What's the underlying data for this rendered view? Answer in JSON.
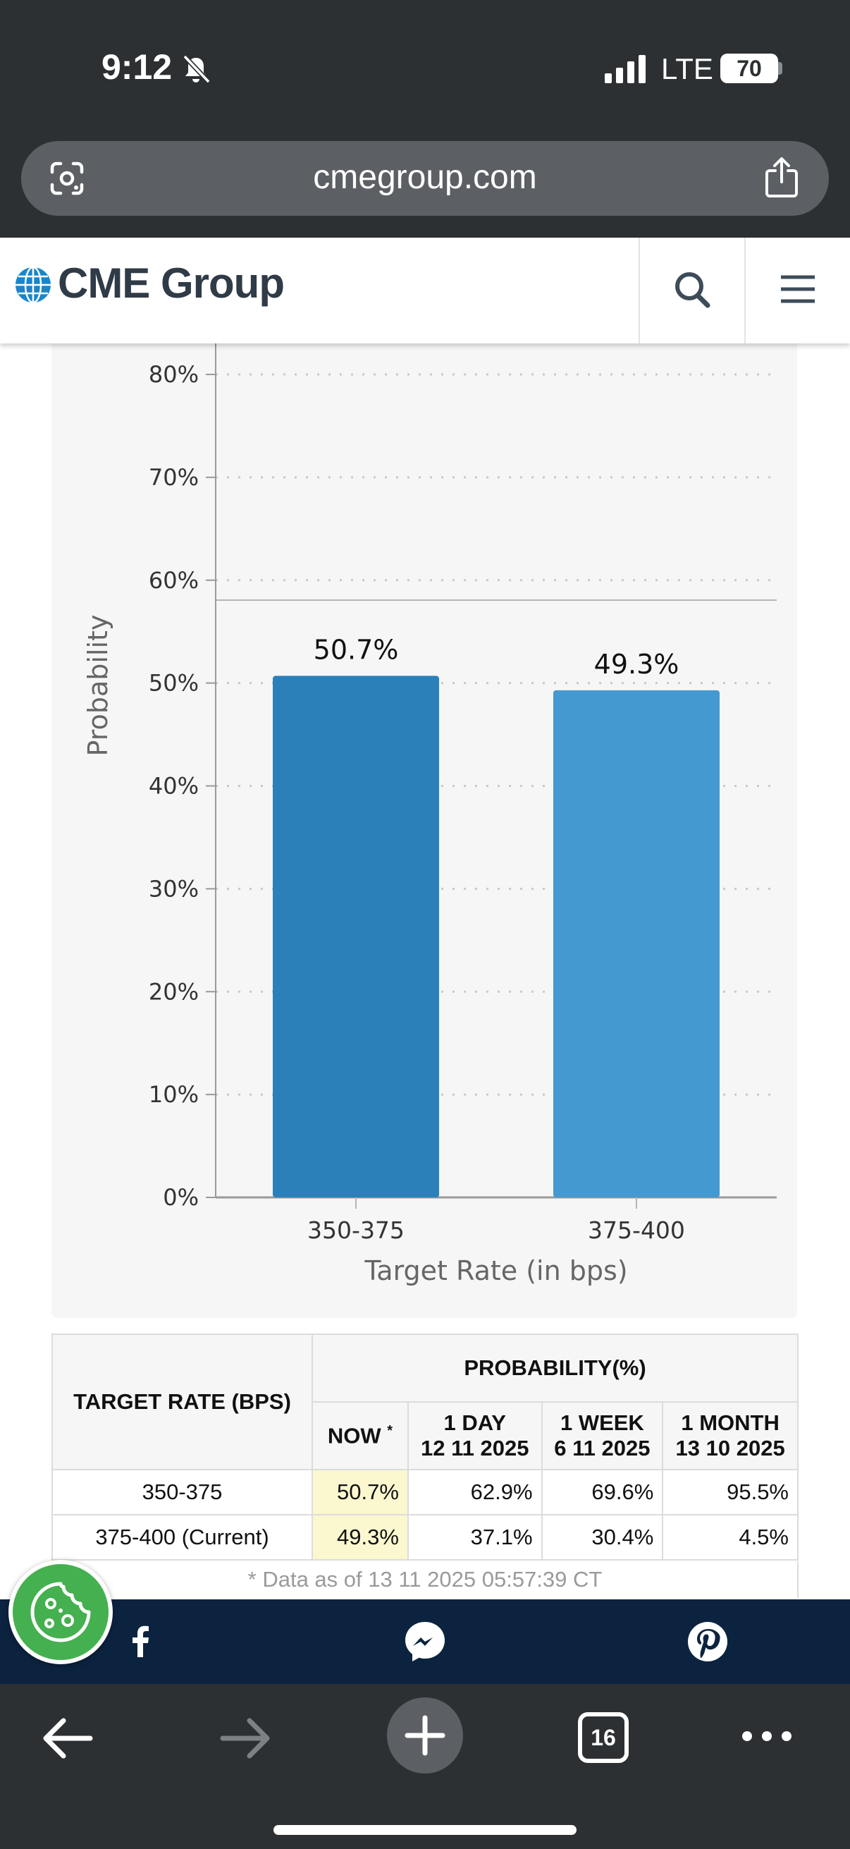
{
  "status_bar": {
    "time": "9:12",
    "network": "LTE",
    "battery": "70"
  },
  "browser": {
    "url": "cmegroup.com",
    "tab_count": "16"
  },
  "site": {
    "logo_text": "CME Group"
  },
  "chart_data": {
    "type": "bar",
    "categories": [
      "350-375",
      "375-400"
    ],
    "values": [
      50.7,
      49.3
    ],
    "value_labels": [
      "50.7%",
      "49.3%"
    ],
    "bar_colors": [
      "#2b80b9",
      "#4499d1"
    ],
    "xlabel": "Target Rate (in bps)",
    "ylabel": "Probability",
    "ylim": [
      0,
      80
    ],
    "y_ticks": [
      "0%",
      "10%",
      "20%",
      "30%",
      "40%",
      "50%",
      "60%",
      "70%",
      "80%"
    ],
    "grid": true
  },
  "table": {
    "col_target": "TARGET RATE (BPS)",
    "col_prob": "PROBABILITY(%)",
    "sub_now": "NOW",
    "sub_now_mark": "*",
    "sub_cols": [
      {
        "line1": "1 DAY",
        "line2": "12 11 2025"
      },
      {
        "line1": "1 WEEK",
        "line2": "6 11 2025"
      },
      {
        "line1": "1 MONTH",
        "line2": "13 10 2025"
      }
    ],
    "rows": [
      {
        "rate": "350-375",
        "now": "50.7%",
        "day": "62.9%",
        "week": "69.6%",
        "month": "95.5%"
      },
      {
        "rate": "375-400 (Current)",
        "now": "49.3%",
        "day": "37.1%",
        "week": "30.4%",
        "month": "4.5%"
      }
    ],
    "footnote": "* Data as of 13 11 2025 05:57:39 CT"
  },
  "colors": {
    "chrome": "#2d3033",
    "brand_dark": "#0c2340",
    "now_highlight": "#fbf8d0",
    "cookie": "#45b04f"
  }
}
